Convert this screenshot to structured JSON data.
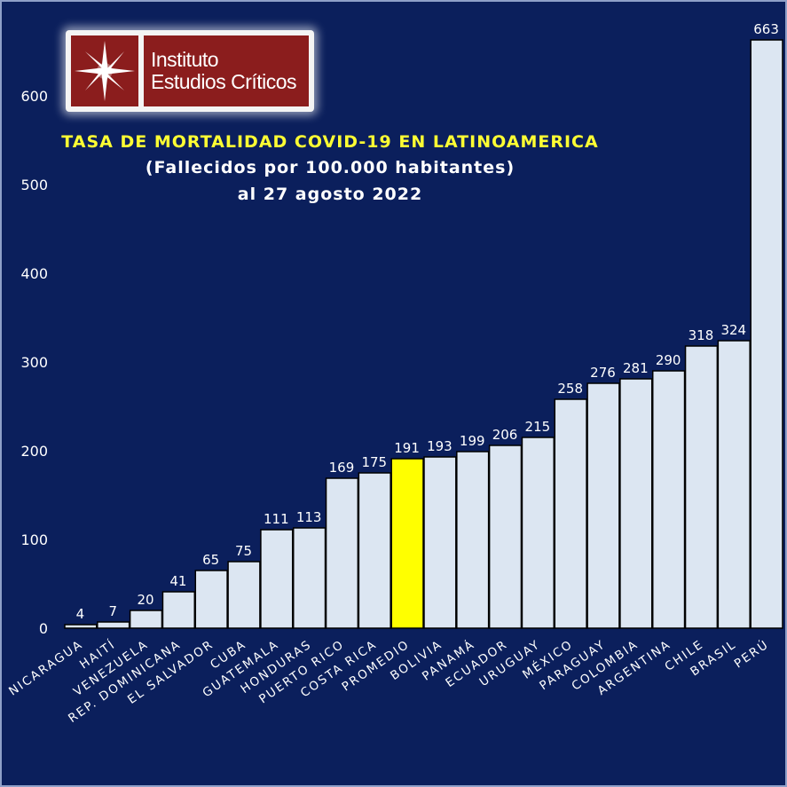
{
  "logo": {
    "line1": "Instituto",
    "line2": "Estudios Críticos",
    "icon": "compass-star-icon"
  },
  "chart_data": {
    "type": "bar",
    "title": "TASA DE MORTALIDAD COVID-19 EN LATINOAMERICA",
    "subtitle": "(Fallecidos por 100.000 habitantes)",
    "date": "al 27 agosto 2022",
    "categories": [
      "NICARAGUA",
      "HAITÍ",
      "VENEZUELA",
      "REP. DOMINICANA",
      "EL SALVADOR",
      "CUBA",
      "GUATEMALA",
      "HONDURAS",
      "PUERTO RICO",
      "COSTA RICA",
      "PROMEDIO",
      "BOLIVIA",
      "PANAMÁ",
      "ECUADOR",
      "URUGUAY",
      "MÉXICO",
      "PARAGUAY",
      "COLOMBIA",
      "ARGENTINA",
      "CHILE",
      "BRASIL",
      "PERÚ"
    ],
    "values": [
      4,
      7,
      20,
      41,
      65,
      75,
      111,
      113,
      169,
      175,
      191,
      193,
      199,
      206,
      215,
      258,
      276,
      281,
      290,
      318,
      324,
      663
    ],
    "highlight_category": "PROMEDIO",
    "yticks": [
      "0",
      "100",
      "200",
      "300",
      "400",
      "500",
      "600"
    ],
    "ylim": [
      0,
      663
    ],
    "xlabel": "",
    "ylabel": "",
    "grid": false,
    "colors": {
      "background": "#0b1f5c",
      "bar": "#dce6f2",
      "bar_highlight": "#ffff00",
      "bar_outline": "#000000",
      "text": "#ffffff",
      "title": "#ffff33"
    }
  }
}
